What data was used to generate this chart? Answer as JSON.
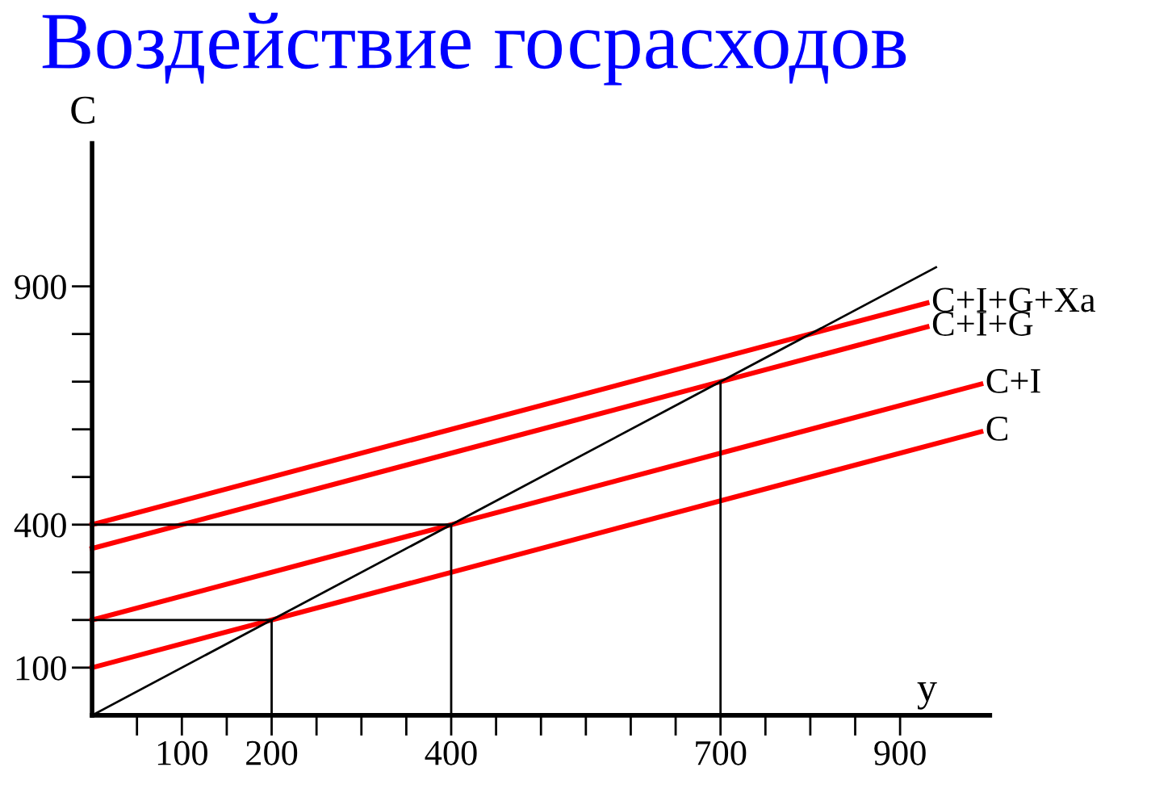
{
  "chart_data": {
    "type": "line",
    "title": "Воздействие госрасходов",
    "xlabel": "y",
    "ylabel": "C",
    "xlim": [
      0,
      1000
    ],
    "ylim": [
      0,
      1200
    ],
    "xticks": [
      {
        "value": 50,
        "label": null
      },
      100,
      200,
      {
        "value": 150,
        "label": null
      },
      {
        "value": 250,
        "label": null
      },
      {
        "value": 300,
        "label": null
      },
      {
        "value": 350,
        "label": null
      },
      400,
      {
        "value": 450,
        "label": null
      },
      {
        "value": 500,
        "label": null
      },
      {
        "value": 550,
        "label": null
      },
      {
        "value": 600,
        "label": null
      },
      {
        "value": 650,
        "label": null
      },
      700,
      {
        "value": 750,
        "label": null
      },
      {
        "value": 800,
        "label": null
      },
      {
        "value": 850,
        "label": null
      },
      900
    ],
    "yticks": [
      100,
      {
        "value": 200,
        "label": null
      },
      {
        "value": 300,
        "label": null
      },
      400,
      {
        "value": 500,
        "label": null
      },
      {
        "value": 600,
        "label": null
      },
      {
        "value": 700,
        "label": null
      },
      {
        "value": 800,
        "label": null
      },
      900
    ],
    "grid": false,
    "legend": false,
    "marker": "none",
    "line_style": "solid",
    "series": [
      {
        "name": "C+I+G+Xa",
        "color": "#ff0000",
        "x": [
          0,
          930
        ],
        "values": [
          400,
          865
        ]
      },
      {
        "name": "C+I+G",
        "color": "#ff0000",
        "x": [
          0,
          930
        ],
        "values": [
          350,
          815
        ]
      },
      {
        "name": "C+I",
        "color": "#ff0000",
        "x": [
          0,
          990
        ],
        "values": [
          200,
          695
        ]
      },
      {
        "name": "C",
        "color": "#ff0000",
        "x": [
          0,
          990
        ],
        "values": [
          100,
          595
        ]
      },
      {
        "color": "#000000",
        "x": [
          0,
          940
        ],
        "values": [
          0,
          940
        ]
      },
      {
        "color": "#000000",
        "x": [
          0,
          200,
          200
        ],
        "values": [
          200,
          200,
          0
        ]
      },
      {
        "color": "#000000",
        "x": [
          0,
          400,
          400
        ],
        "values": [
          400,
          400,
          0
        ]
      },
      {
        "color": "#000000",
        "x": [
          700,
          700
        ],
        "values": [
          700,
          0
        ]
      }
    ]
  }
}
